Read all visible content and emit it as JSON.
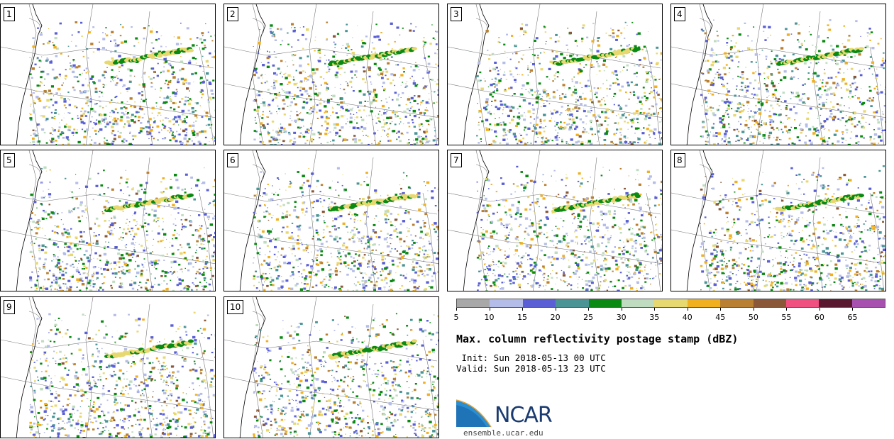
{
  "panels": [
    {
      "label": "1"
    },
    {
      "label": "2"
    },
    {
      "label": "3"
    },
    {
      "label": "4"
    },
    {
      "label": "5"
    },
    {
      "label": "6"
    },
    {
      "label": "7"
    },
    {
      "label": "8"
    },
    {
      "label": "9"
    },
    {
      "label": "10"
    }
  ],
  "colorbar": {
    "ticks": [
      "5",
      "10",
      "15",
      "20",
      "25",
      "30",
      "35",
      "40",
      "45",
      "50",
      "55",
      "60",
      "65"
    ],
    "colors": [
      "#a8a8a8",
      "#b4bce8",
      "#5a5fd6",
      "#4a9496",
      "#0a8a12",
      "#c0dcc0",
      "#e8d870",
      "#f0b020",
      "#b88030",
      "#8a5838",
      "#f05080",
      "#5a1830",
      "#a850b0"
    ]
  },
  "title": "Max. column reflectivity postage stamp (dBZ)",
  "init_text": " Init: Sun 2018-05-13 00 UTC",
  "valid_text": "Valid: Sun 2018-05-13 23 UTC",
  "logo_text": "NCAR",
  "site": "ensemble.ucar.edu"
}
